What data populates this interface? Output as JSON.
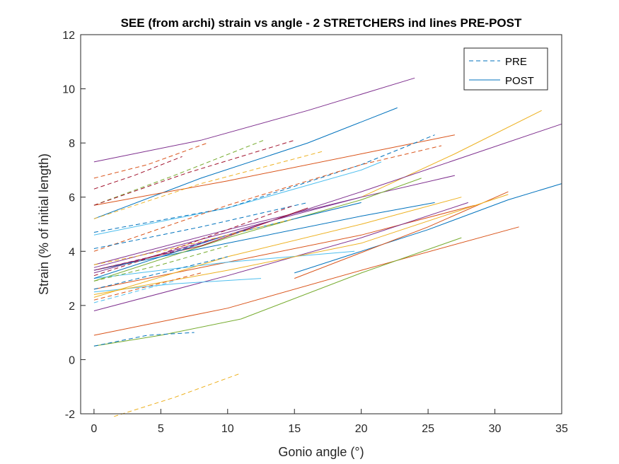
{
  "chart_data": {
    "type": "line",
    "title": "SEE (from archi) strain vs angle - 2 STRETCHERS ind lines PRE-POST",
    "xlabel": "Gonio angle (°)",
    "ylabel": "Strain (% of initial length)",
    "xlim": [
      -1,
      35
    ],
    "ylim": [
      -2,
      12
    ],
    "xticks": [
      0,
      5,
      10,
      15,
      20,
      25,
      30,
      35
    ],
    "yticks": [
      -2,
      0,
      2,
      4,
      6,
      8,
      10,
      12
    ],
    "grid": false,
    "legend": {
      "placement": "top-right",
      "entries": [
        {
          "label": "PRE",
          "style": "dashed",
          "color": "#0072BD"
        },
        {
          "label": "POST",
          "style": "solid",
          "color": "#0072BD"
        }
      ]
    },
    "series": [
      {
        "group": "POST",
        "color": "#7E2F8E",
        "x": [
          0,
          8,
          16,
          24
        ],
        "y": [
          7.3,
          8.1,
          9.2,
          10.4
        ]
      },
      {
        "group": "POST",
        "color": "#0072BD",
        "x": [
          0,
          8,
          16,
          22.7
        ],
        "y": [
          5.2,
          6.7,
          8.0,
          9.3
        ]
      },
      {
        "group": "POST",
        "color": "#EDB120",
        "x": [
          20,
          27,
          33.5
        ],
        "y": [
          6.0,
          7.6,
          9.2
        ]
      },
      {
        "group": "POST",
        "color": "#7E2F8E",
        "x": [
          0,
          10,
          20,
          35
        ],
        "y": [
          3.2,
          4.6,
          6.2,
          8.7
        ]
      },
      {
        "group": "POST",
        "color": "#D95319",
        "x": [
          0,
          10,
          20,
          27
        ],
        "y": [
          5.7,
          6.6,
          7.6,
          8.3
        ]
      },
      {
        "group": "POST",
        "color": "#7E2F8E",
        "x": [
          0,
          10,
          20,
          27
        ],
        "y": [
          3.5,
          4.8,
          6.0,
          6.8
        ]
      },
      {
        "group": "POST",
        "color": "#0072BD",
        "x": [
          0,
          10,
          20,
          25.5
        ],
        "y": [
          3.3,
          4.3,
          5.3,
          5.8
        ]
      },
      {
        "group": "POST",
        "color": "#77AC30",
        "x": [
          0,
          10,
          20,
          24.5
        ],
        "y": [
          2.9,
          4.5,
          5.9,
          6.7
        ]
      },
      {
        "group": "POST",
        "color": "#D95319",
        "x": [
          0,
          10,
          20,
          28.5
        ],
        "y": [
          2.6,
          3.6,
          4.6,
          5.7
        ]
      },
      {
        "group": "POST",
        "color": "#7E2F8E",
        "x": [
          0,
          10,
          20,
          28
        ],
        "y": [
          1.8,
          3.1,
          4.5,
          5.8
        ]
      },
      {
        "group": "POST",
        "color": "#0072BD",
        "x": [
          15,
          25,
          31,
          35
        ],
        "y": [
          3.2,
          4.8,
          5.9,
          6.5
        ]
      },
      {
        "group": "POST",
        "color": "#D95319",
        "x": [
          15,
          25,
          31
        ],
        "y": [
          3.0,
          4.9,
          6.2
        ]
      },
      {
        "group": "POST",
        "color": "#D95319",
        "x": [
          0,
          10,
          20,
          31.8
        ],
        "y": [
          0.9,
          1.9,
          3.3,
          4.9
        ]
      },
      {
        "group": "POST",
        "color": "#77AC30",
        "x": [
          0,
          5,
          11
        ],
        "y": [
          0.5,
          0.9,
          1.5
        ]
      },
      {
        "group": "POST",
        "color": "#77AC30",
        "x": [
          11,
          20,
          27.5
        ],
        "y": [
          1.5,
          3.2,
          4.5
        ]
      },
      {
        "group": "POST",
        "color": "#4DBEEE",
        "x": [
          0,
          10,
          20,
          21.5
        ],
        "y": [
          4.6,
          5.6,
          7.0,
          7.3
        ]
      },
      {
        "group": "POST",
        "color": "#4DBEEE",
        "x": [
          0,
          6,
          12.5
        ],
        "y": [
          2.5,
          2.8,
          3.0
        ]
      },
      {
        "group": "POST",
        "color": "#4DBEEE",
        "x": [
          0,
          10,
          19.5
        ],
        "y": [
          3.0,
          3.6,
          4.0
        ]
      },
      {
        "group": "POST",
        "color": "#EDB120",
        "x": [
          0,
          10,
          20,
          27.5
        ],
        "y": [
          2.3,
          3.8,
          5.0,
          6.0
        ]
      },
      {
        "group": "POST",
        "color": "#EDB120",
        "x": [
          0,
          10,
          20,
          31
        ],
        "y": [
          2.4,
          3.3,
          4.3,
          6.1
        ]
      },
      {
        "group": "POST",
        "color": "#A2142F",
        "x": [
          0,
          8,
          16
        ],
        "y": [
          3.3,
          4.2,
          5.6
        ]
      },
      {
        "group": "POST",
        "color": "#7E2F8E",
        "x": [
          0,
          10,
          20
        ],
        "y": [
          3.4,
          4.7,
          6.0
        ]
      },
      {
        "group": "POST",
        "color": "#0072BD",
        "x": [
          0,
          10,
          20
        ],
        "y": [
          3.0,
          4.6,
          5.8
        ]
      },
      {
        "group": "PRE",
        "color": "#D95319",
        "x": [
          0,
          4,
          8.5
        ],
        "y": [
          6.7,
          7.2,
          8.0
        ]
      },
      {
        "group": "PRE",
        "color": "#A2142F",
        "x": [
          0,
          3,
          6.6
        ],
        "y": [
          6.3,
          6.8,
          7.5
        ]
      },
      {
        "group": "PRE",
        "color": "#77AC30",
        "x": [
          0,
          6,
          12.7
        ],
        "y": [
          5.7,
          6.8,
          8.1
        ]
      },
      {
        "group": "PRE",
        "color": "#A2142F",
        "x": [
          0,
          7,
          15
        ],
        "y": [
          5.7,
          6.9,
          8.1
        ]
      },
      {
        "group": "PRE",
        "color": "#EDB120",
        "x": [
          0,
          8,
          17.2
        ],
        "y": [
          5.2,
          6.5,
          7.7
        ]
      },
      {
        "group": "PRE",
        "color": "#0072BD",
        "x": [
          0,
          10,
          20,
          25.5
        ],
        "y": [
          4.7,
          5.6,
          7.2,
          8.3
        ]
      },
      {
        "group": "PRE",
        "color": "#D95319",
        "x": [
          0,
          10,
          20,
          26
        ],
        "y": [
          4.0,
          5.7,
          7.2,
          7.9
        ]
      },
      {
        "group": "PRE",
        "color": "#0072BD",
        "x": [
          0,
          8,
          16
        ],
        "y": [
          4.1,
          4.9,
          5.8
        ]
      },
      {
        "group": "PRE",
        "color": "#7E2F8E",
        "x": [
          0,
          6,
          12
        ],
        "y": [
          3.3,
          4.0,
          4.9
        ]
      },
      {
        "group": "PRE",
        "color": "#EDB120",
        "x": [
          0,
          5,
          10,
          15
        ],
        "y": [
          3.5,
          4.0,
          4.6,
          5.2
        ]
      },
      {
        "group": "PRE",
        "color": "#A2142F",
        "x": [
          0,
          5,
          10,
          15
        ],
        "y": [
          3.1,
          3.9,
          4.8,
          5.7
        ]
      },
      {
        "group": "PRE",
        "color": "#77AC30",
        "x": [
          0,
          5,
          10
        ],
        "y": [
          2.9,
          3.5,
          4.2
        ]
      },
      {
        "group": "PRE",
        "color": "#0072BD",
        "x": [
          0,
          5,
          10
        ],
        "y": [
          2.6,
          3.2,
          3.8
        ]
      },
      {
        "group": "PRE",
        "color": "#D95319",
        "x": [
          0,
          4,
          8
        ],
        "y": [
          2.2,
          2.7,
          3.2
        ]
      },
      {
        "group": "PRE",
        "color": "#4DBEEE",
        "x": [
          0,
          3,
          6
        ],
        "y": [
          2.1,
          2.5,
          2.9
        ]
      },
      {
        "group": "PRE",
        "color": "#0072BD",
        "x": [
          0,
          4,
          7.5
        ],
        "y": [
          0.5,
          0.9,
          1.0
        ]
      },
      {
        "group": "PRE",
        "color": "#EDB120",
        "x": [
          1.5,
          6,
          11
        ],
        "y": [
          -2.1,
          -1.4,
          -0.5
        ]
      }
    ]
  }
}
